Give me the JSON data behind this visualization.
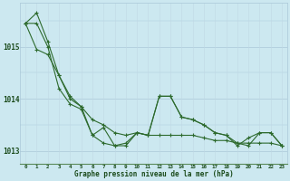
{
  "hours": [
    0,
    1,
    2,
    3,
    4,
    5,
    6,
    7,
    8,
    9,
    10,
    11,
    12,
    13,
    14,
    15,
    16,
    17,
    18,
    19,
    20,
    21,
    22,
    23
  ],
  "series1": [
    1015.45,
    1015.65,
    1015.1,
    1014.45,
    1014.0,
    1013.85,
    1013.3,
    1013.15,
    1013.1,
    1013.1,
    1013.35,
    1013.3,
    1014.05,
    1014.05,
    1013.65,
    1013.6,
    1013.5,
    1013.35,
    1013.3,
    1013.1,
    1013.25,
    1013.35,
    1013.35,
    1013.1
  ],
  "series2": [
    1015.45,
    1014.95,
    1014.85,
    1014.45,
    1014.05,
    1013.85,
    1013.6,
    1013.5,
    1013.35,
    1013.3,
    1013.35,
    1013.3,
    1013.3,
    1013.3,
    1013.3,
    1013.3,
    1013.25,
    1013.2,
    1013.2,
    1013.15,
    1013.15,
    1013.15,
    1013.15,
    1013.1
  ],
  "series3": [
    1015.45,
    1015.45,
    1015.0,
    1014.2,
    1013.9,
    1013.8,
    1013.3,
    1013.45,
    1013.1,
    1013.15,
    1013.35,
    1013.3,
    1014.05,
    1014.05,
    1013.65,
    1013.6,
    1013.5,
    1013.35,
    1013.3,
    1013.15,
    1013.1,
    1013.35,
    1013.35,
    1013.1
  ],
  "line_color": "#2d6a2d",
  "marker_color": "#2d6a2d",
  "bg_color": "#cce8f0",
  "grid_color_h": "#aac8d8",
  "grid_color_v": "#c0d8e4",
  "xlabel": "Graphe pression niveau de la mer (hPa)",
  "xlim": [
    -0.5,
    23.5
  ],
  "ylim": [
    1012.75,
    1015.85
  ],
  "yticks": [
    1013.0,
    1014.0,
    1015.0
  ],
  "font_color": "#1a4a1a"
}
